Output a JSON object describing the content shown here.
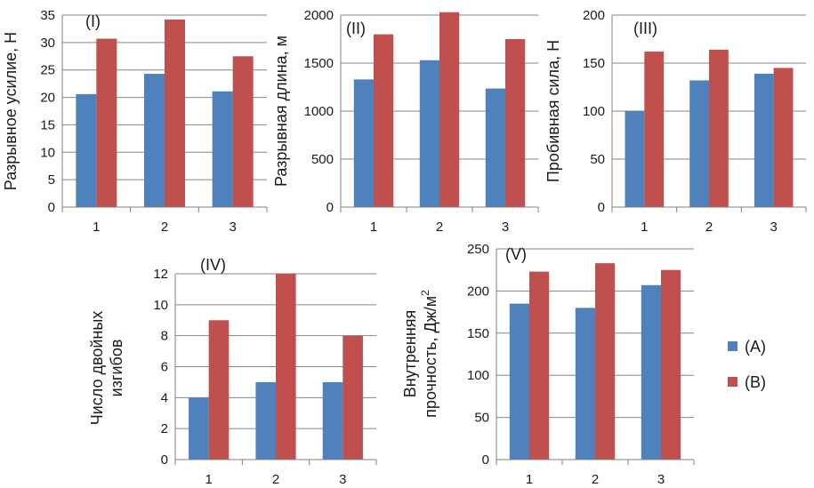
{
  "chart_data": [
    {
      "type": "bar",
      "title": "(I)",
      "ylabel": "Разрывное усилие, Н",
      "categories": [
        "1",
        "2",
        "3"
      ],
      "ylim": [
        0,
        35
      ],
      "yticks": [
        "0",
        "5",
        "10",
        "15",
        "20",
        "25",
        "30",
        "35"
      ],
      "series": [
        {
          "name": "(A)",
          "values": [
            20.6,
            24.3,
            21.1
          ]
        },
        {
          "name": "(B)",
          "values": [
            30.7,
            34.2,
            27.5
          ]
        }
      ]
    },
    {
      "type": "bar",
      "title": "(II)",
      "ylabel": "Разрывная длина, м",
      "categories": [
        "1",
        "2",
        "3"
      ],
      "ylim": [
        0,
        2000
      ],
      "yticks": [
        "0",
        "500",
        "1000",
        "1500",
        "2000"
      ],
      "series": [
        {
          "name": "(A)",
          "values": [
            1330,
            1530,
            1235
          ]
        },
        {
          "name": "(B)",
          "values": [
            1800,
            2030,
            1750
          ]
        }
      ]
    },
    {
      "type": "bar",
      "title": "(III)",
      "ylabel": "Пробивная сила, Н",
      "categories": [
        "1",
        "2",
        "3"
      ],
      "ylim": [
        0,
        200
      ],
      "yticks": [
        "0",
        "50",
        "100",
        "150",
        "200"
      ],
      "series": [
        {
          "name": "(A)",
          "values": [
            100,
            132,
            139
          ]
        },
        {
          "name": "(B)",
          "values": [
            162,
            164,
            145
          ]
        }
      ]
    },
    {
      "type": "bar",
      "title": "(IV)",
      "ylabel_lines": [
        "Число двойных",
        "изгибов"
      ],
      "categories": [
        "1",
        "2",
        "3"
      ],
      "ylim": [
        0,
        12
      ],
      "yticks": [
        "0",
        "2",
        "4",
        "6",
        "8",
        "10",
        "12"
      ],
      "series": [
        {
          "name": "(A)",
          "values": [
            4,
            5,
            5
          ]
        },
        {
          "name": "(B)",
          "values": [
            9,
            12,
            8
          ]
        }
      ]
    },
    {
      "type": "bar",
      "title": "(V)",
      "ylabel_lines": [
        "Внутренняя",
        "прочность, Дж/м"
      ],
      "ylabel_superscript": "2",
      "categories": [
        "1",
        "2",
        "3"
      ],
      "ylim": [
        0,
        250
      ],
      "yticks": [
        "0",
        "50",
        "100",
        "150",
        "200",
        "250"
      ],
      "series": [
        {
          "name": "(A)",
          "values": [
            185,
            180,
            207
          ]
        },
        {
          "name": "(B)",
          "values": [
            223,
            233,
            225
          ]
        }
      ]
    }
  ],
  "legend": {
    "items": [
      {
        "label": "(A)",
        "color": "#4f81bd"
      },
      {
        "label": "(B)",
        "color": "#c0504d"
      }
    ]
  },
  "colors": {
    "series_a": "#4f81bd",
    "series_b": "#c0504d",
    "axis": "#808080",
    "grid": "#868686"
  }
}
